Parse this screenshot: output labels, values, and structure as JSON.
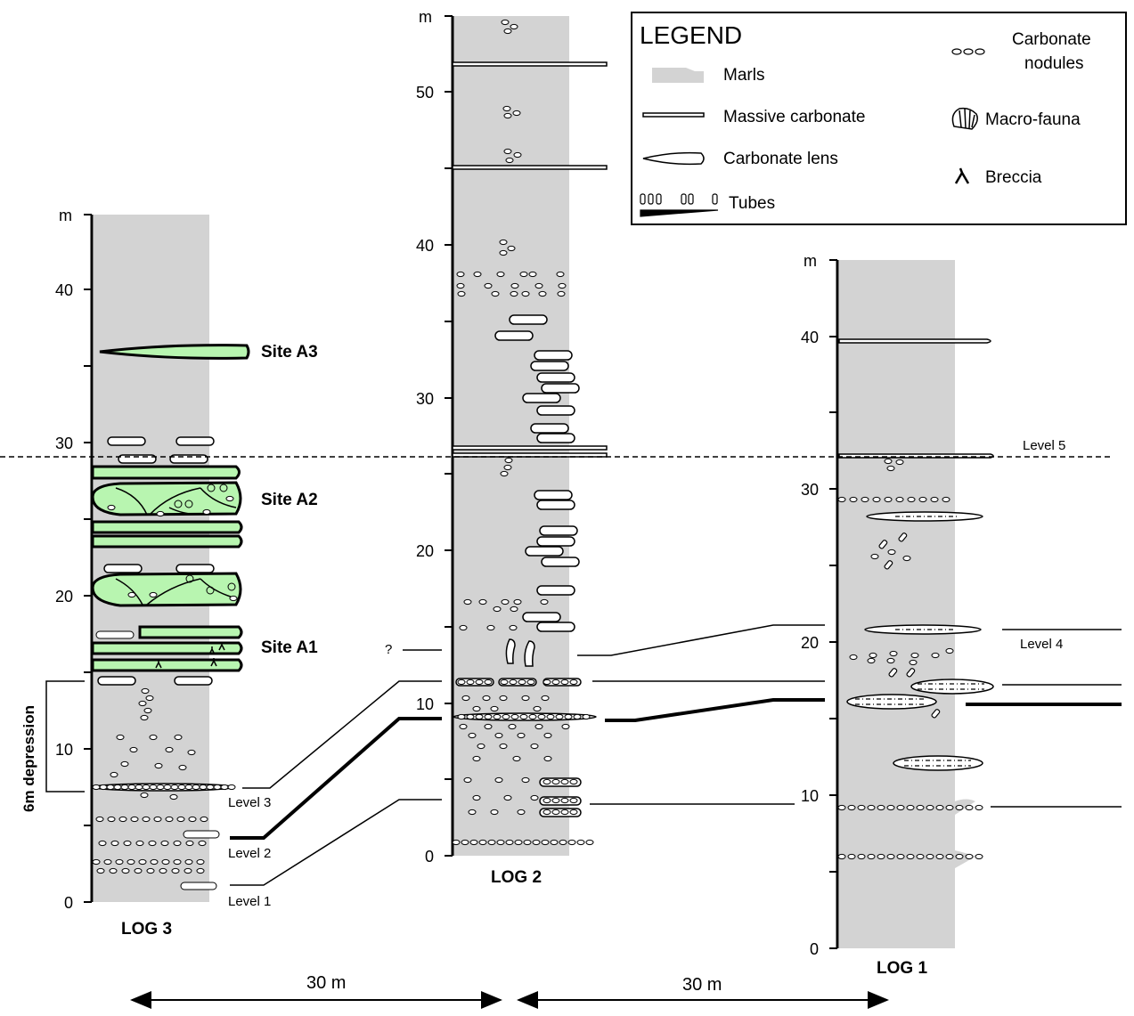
{
  "legend": {
    "title": "LEGEND",
    "marls": "Marls",
    "massive_carbonate": "Massive carbonate",
    "carbonate_lens": "Carbonate lens",
    "tubes": "Tubes",
    "nodules_line1": "Carbonate",
    "nodules_line2": "nodules",
    "macrofauna": "Macro-fauna",
    "breccia": "Breccia"
  },
  "logs": {
    "log1": {
      "title": "LOG 1",
      "unit": "m",
      "ticks": [
        "0",
        "10",
        "20",
        "30",
        "40"
      ]
    },
    "log2": {
      "title": "LOG 2",
      "unit": "m",
      "ticks": [
        "0",
        "10",
        "20",
        "30",
        "40",
        "50"
      ]
    },
    "log3": {
      "title": "LOG 3",
      "unit": "m",
      "ticks": [
        "0",
        "10",
        "20",
        "30",
        "40"
      ]
    }
  },
  "sites": {
    "a1": "Site A1",
    "a2": "Site A2",
    "a3": "Site A3"
  },
  "levels": {
    "l1": "Level 1",
    "l2": "Level 2",
    "l3": "Level 3",
    "l4": "Level 4",
    "l5": "Level 5"
  },
  "question_mark": "?",
  "depression_label": "6m depression",
  "distance_left": "30 m",
  "distance_right": "30 m",
  "colors": {
    "marl": "#d3d3d3",
    "site": "#b8f5b0",
    "line": "#000000"
  }
}
